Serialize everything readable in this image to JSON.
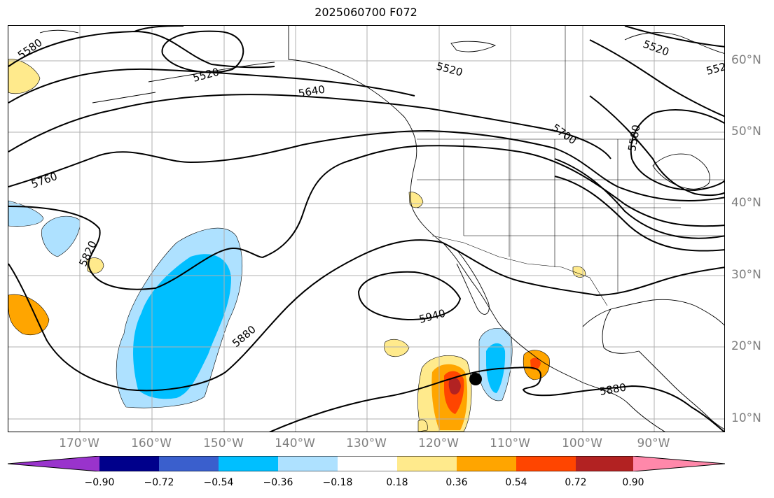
{
  "title": "2025060700 F072",
  "map": {
    "projection": "mercator",
    "extent": {
      "lon": [
        -180,
        -80
      ],
      "lat": [
        8,
        65
      ]
    },
    "grid": true,
    "lon_ticks": [
      "170°W",
      "160°W",
      "150°W",
      "140°W",
      "130°W",
      "120°W",
      "110°W",
      "100°W",
      "90°W"
    ],
    "lat_ticks": [
      "10°N",
      "20°N",
      "30°N",
      "40°N",
      "50°N",
      "60°N"
    ],
    "contour_field": "geopotential height (500 hPa)",
    "contour_labels": [
      "5580",
      "5520",
      "5640",
      "5520",
      "5760",
      "5700",
      "5580",
      "5820",
      "5940",
      "5880",
      "5880",
      "5520",
      "552"
    ],
    "marker": {
      "name": "storm-center",
      "lon": -115,
      "lat": 15.5
    }
  },
  "colorbar": {
    "ticks": [
      "−0.90",
      "−0.72",
      "−0.54",
      "−0.36",
      "−0.18",
      "0.18",
      "0.36",
      "0.54",
      "0.72",
      "0.90"
    ],
    "colors": [
      "#9933cc",
      "#00008b",
      "#3a5fcd",
      "#00bfff",
      "#aee1ff",
      "#ffffff",
      "#ffea8c",
      "#ffa500",
      "#ff4500",
      "#b22222",
      "#ff88aa"
    ],
    "extend": "both"
  }
}
